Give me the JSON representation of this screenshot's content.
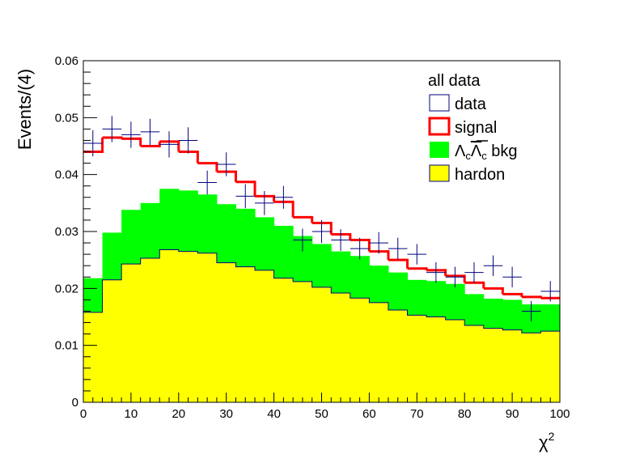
{
  "chart_data": {
    "type": "histogram",
    "xlabel": "χ",
    "xlabel_sup": "2",
    "ylabel": "Events/(4)",
    "xlim": [
      0,
      100
    ],
    "ylim": [
      0,
      0.06
    ],
    "x_ticks": [
      "0",
      "10",
      "20",
      "30",
      "40",
      "50",
      "60",
      "70",
      "80",
      "90",
      "100"
    ],
    "y_ticks": [
      "0",
      "0.01",
      "0.02",
      "0.03",
      "0.04",
      "0.05",
      "0.06"
    ],
    "bin_edges": [
      0,
      4,
      8,
      12,
      16,
      20,
      24,
      28,
      32,
      36,
      40,
      44,
      48,
      52,
      56,
      60,
      64,
      68,
      72,
      76,
      80,
      84,
      88,
      92,
      96,
      100
    ],
    "legend": {
      "header": "all data",
      "entries": [
        {
          "key": "data",
          "label": "data"
        },
        {
          "key": "signal",
          "label": "signal"
        },
        {
          "key": "lambda",
          "label": "Λ",
          "sub": "c",
          "label_over": "Λ",
          "sub2": "c",
          "label_tail": " bkg"
        },
        {
          "key": "hardon",
          "label": "hardon"
        }
      ]
    },
    "series": [
      {
        "name": "hardon",
        "style": "filled-stack",
        "color": "#ffff00",
        "values": [
          0.0158,
          0.0215,
          0.0243,
          0.0253,
          0.0268,
          0.0265,
          0.0262,
          0.0245,
          0.0238,
          0.0232,
          0.0218,
          0.0212,
          0.0202,
          0.0192,
          0.0183,
          0.0175,
          0.0162,
          0.0153,
          0.015,
          0.0145,
          0.0135,
          0.013,
          0.0127,
          0.0122,
          0.0125
        ]
      },
      {
        "name": "Λc anti-Λc bkg",
        "style": "filled-stack-total",
        "color": "#00ff00",
        "values": [
          0.0218,
          0.0298,
          0.0338,
          0.035,
          0.0375,
          0.0372,
          0.0365,
          0.0348,
          0.034,
          0.0325,
          0.031,
          0.0292,
          0.0278,
          0.0265,
          0.0257,
          0.024,
          0.0228,
          0.0215,
          0.0213,
          0.0208,
          0.019,
          0.0182,
          0.018,
          0.0172,
          0.0172
        ]
      },
      {
        "name": "signal",
        "style": "step-line",
        "color": "#ff0000",
        "values": [
          0.044,
          0.0465,
          0.0463,
          0.045,
          0.0458,
          0.044,
          0.042,
          0.0405,
          0.0387,
          0.0362,
          0.0352,
          0.0325,
          0.0315,
          0.0295,
          0.0285,
          0.0265,
          0.025,
          0.0235,
          0.0232,
          0.0222,
          0.021,
          0.02,
          0.019,
          0.0185,
          0.0183
        ]
      },
      {
        "name": "data",
        "style": "error-cross",
        "color": "#00007f",
        "values": [
          0.0455,
          0.048,
          0.047,
          0.0475,
          0.0453,
          0.046,
          0.0386,
          0.0418,
          0.0362,
          0.035,
          0.036,
          0.0285,
          0.03,
          0.0285,
          0.027,
          0.028,
          0.027,
          0.026,
          0.0228,
          0.022,
          0.0228,
          0.024,
          0.022,
          0.016,
          0.0195
        ],
        "errors": [
          0.0023,
          0.0023,
          0.0023,
          0.0023,
          0.0023,
          0.0023,
          0.0021,
          0.0021,
          0.0021,
          0.0021,
          0.002,
          0.002,
          0.002,
          0.0019,
          0.0019,
          0.0019,
          0.0019,
          0.0018,
          0.0018,
          0.0018,
          0.0018,
          0.0018,
          0.0018,
          0.0018,
          0.0018
        ]
      }
    ]
  }
}
